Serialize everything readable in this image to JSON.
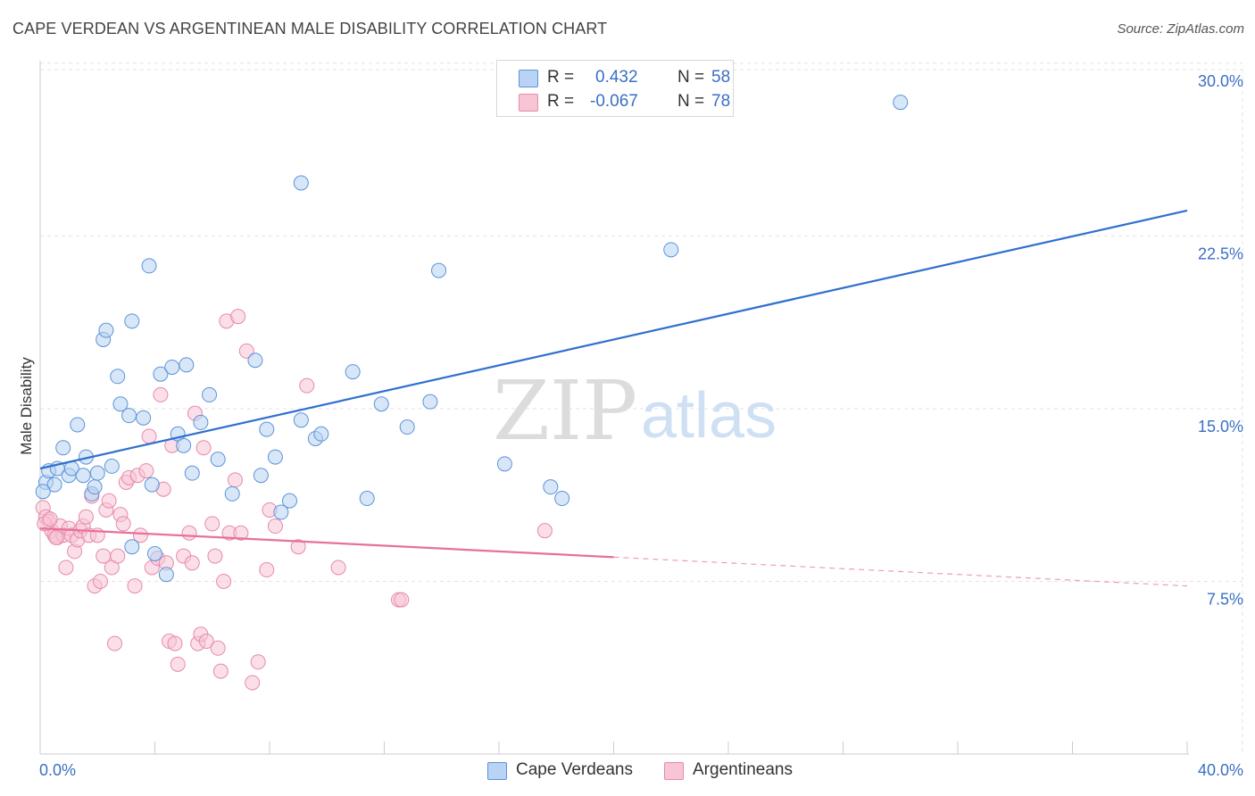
{
  "title": "CAPE VERDEAN VS ARGENTINEAN MALE DISABILITY CORRELATION CHART",
  "source": "Source: ZipAtlas.com",
  "watermark": {
    "part1": "ZIP",
    "part2": "atlas"
  },
  "legend": {
    "series1": {
      "r_label": "R =",
      "r_value": "0.432",
      "n_label": "N =",
      "n_value": "58"
    },
    "series2": {
      "r_label": "R =",
      "r_value": "-0.067",
      "n_label": "N =",
      "n_value": "78"
    }
  },
  "bottom_legend": {
    "series1": "Cape Verdeans",
    "series2": "Argentineans"
  },
  "colors": {
    "blue_fill": "#b8d3f3",
    "blue_stroke": "#5b93d8",
    "blue_line": "#2f6fcf",
    "pink_fill": "#f8c5d5",
    "pink_stroke": "#e68aa8",
    "pink_line": "#e8709a",
    "axis_text": "#3a6fc4",
    "grid": "#e3e3e3"
  },
  "chart_data": {
    "type": "scatter",
    "title": "CAPE VERDEAN VS ARGENTINEAN MALE DISABILITY CORRELATION CHART",
    "xlabel": "",
    "ylabel": "Male Disability",
    "xlim": [
      0,
      40
    ],
    "ylim": [
      0,
      31
    ],
    "x_tick_labels": [
      "0.0%",
      "40.0%"
    ],
    "y_ticks": [
      7.5,
      15.0,
      22.5,
      30.0
    ],
    "y_tick_labels": [
      "7.5%",
      "15.0%",
      "22.5%",
      "30.0%"
    ],
    "series": [
      {
        "name": "Cape Verdeans",
        "color": "#5b93d8",
        "trend": {
          "x": [
            0,
            40
          ],
          "y": [
            12.4,
            23.6
          ],
          "style": "solid"
        },
        "points": [
          [
            0.2,
            11.8
          ],
          [
            0.3,
            12.3
          ],
          [
            0.5,
            11.7
          ],
          [
            0.6,
            12.4
          ],
          [
            0.8,
            13.3
          ],
          [
            1.0,
            12.1
          ],
          [
            1.1,
            12.4
          ],
          [
            1.3,
            14.3
          ],
          [
            1.5,
            12.1
          ],
          [
            1.6,
            12.9
          ],
          [
            1.8,
            11.3
          ],
          [
            1.9,
            11.6
          ],
          [
            2.0,
            12.2
          ],
          [
            2.2,
            18.0
          ],
          [
            2.3,
            18.4
          ],
          [
            2.5,
            12.5
          ],
          [
            2.7,
            16.4
          ],
          [
            2.8,
            15.2
          ],
          [
            3.1,
            14.7
          ],
          [
            3.2,
            18.8
          ],
          [
            3.2,
            9.0
          ],
          [
            3.6,
            14.6
          ],
          [
            3.8,
            21.2
          ],
          [
            3.9,
            11.7
          ],
          [
            4.0,
            8.7
          ],
          [
            4.2,
            16.5
          ],
          [
            4.4,
            7.8
          ],
          [
            4.6,
            16.8
          ],
          [
            4.8,
            13.9
          ],
          [
            5.0,
            13.4
          ],
          [
            5.1,
            16.9
          ],
          [
            5.3,
            12.2
          ],
          [
            5.6,
            14.4
          ],
          [
            5.9,
            15.6
          ],
          [
            6.2,
            12.8
          ],
          [
            6.7,
            11.3
          ],
          [
            7.5,
            17.1
          ],
          [
            7.7,
            12.1
          ],
          [
            7.9,
            14.1
          ],
          [
            8.2,
            12.9
          ],
          [
            8.4,
            10.5
          ],
          [
            8.7,
            11.0
          ],
          [
            9.1,
            14.5
          ],
          [
            9.1,
            24.8
          ],
          [
            9.6,
            13.7
          ],
          [
            9.8,
            13.9
          ],
          [
            10.9,
            16.6
          ],
          [
            11.4,
            11.1
          ],
          [
            11.9,
            15.2
          ],
          [
            12.8,
            14.2
          ],
          [
            13.6,
            15.3
          ],
          [
            13.9,
            21.0
          ],
          [
            16.2,
            12.6
          ],
          [
            17.8,
            11.6
          ],
          [
            18.2,
            11.1
          ],
          [
            22.0,
            21.9
          ],
          [
            30.0,
            28.3
          ],
          [
            0.1,
            11.4
          ]
        ]
      },
      {
        "name": "Argentineans",
        "color": "#e68aa8",
        "trend": {
          "x": [
            0,
            20
          ],
          "y": [
            9.8,
            8.55
          ],
          "style": "solid",
          "dashed_to": [
            40,
            7.3
          ]
        },
        "points": [
          [
            0.1,
            10.7
          ],
          [
            0.2,
            10.3
          ],
          [
            0.3,
            10.1
          ],
          [
            0.4,
            9.7
          ],
          [
            0.5,
            9.5
          ],
          [
            0.6,
            9.4
          ],
          [
            0.7,
            9.9
          ],
          [
            0.8,
            9.5
          ],
          [
            0.9,
            8.1
          ],
          [
            1.0,
            9.8
          ],
          [
            1.1,
            9.5
          ],
          [
            1.2,
            8.8
          ],
          [
            1.3,
            9.3
          ],
          [
            1.4,
            9.7
          ],
          [
            1.5,
            9.9
          ],
          [
            1.6,
            10.3
          ],
          [
            1.7,
            9.5
          ],
          [
            1.8,
            11.2
          ],
          [
            1.9,
            7.3
          ],
          [
            2.0,
            9.5
          ],
          [
            2.1,
            7.5
          ],
          [
            2.2,
            8.6
          ],
          [
            2.3,
            10.6
          ],
          [
            2.4,
            11.0
          ],
          [
            2.5,
            8.1
          ],
          [
            2.6,
            4.8
          ],
          [
            2.7,
            8.6
          ],
          [
            2.8,
            10.4
          ],
          [
            2.9,
            10.0
          ],
          [
            3.0,
            11.8
          ],
          [
            3.1,
            12.0
          ],
          [
            3.3,
            7.3
          ],
          [
            3.4,
            12.1
          ],
          [
            3.5,
            9.5
          ],
          [
            3.7,
            12.3
          ],
          [
            3.8,
            13.8
          ],
          [
            3.9,
            8.1
          ],
          [
            4.1,
            8.5
          ],
          [
            4.2,
            15.6
          ],
          [
            4.3,
            11.5
          ],
          [
            4.4,
            8.3
          ],
          [
            4.5,
            4.9
          ],
          [
            4.6,
            13.4
          ],
          [
            4.7,
            4.8
          ],
          [
            4.8,
            3.9
          ],
          [
            5.0,
            8.6
          ],
          [
            5.2,
            9.6
          ],
          [
            5.3,
            8.3
          ],
          [
            5.4,
            14.8
          ],
          [
            5.5,
            4.8
          ],
          [
            5.6,
            5.2
          ],
          [
            5.7,
            13.3
          ],
          [
            5.8,
            4.9
          ],
          [
            6.0,
            10.0
          ],
          [
            6.1,
            8.6
          ],
          [
            6.2,
            4.6
          ],
          [
            6.3,
            3.6
          ],
          [
            6.4,
            7.5
          ],
          [
            6.5,
            18.8
          ],
          [
            6.6,
            9.6
          ],
          [
            6.8,
            11.9
          ],
          [
            6.9,
            19.0
          ],
          [
            7.0,
            9.6
          ],
          [
            7.2,
            17.5
          ],
          [
            7.4,
            3.1
          ],
          [
            7.6,
            4.0
          ],
          [
            7.9,
            8.0
          ],
          [
            8.0,
            10.6
          ],
          [
            8.2,
            9.9
          ],
          [
            9.0,
            9.0
          ],
          [
            9.3,
            16.0
          ],
          [
            10.4,
            8.1
          ],
          [
            12.5,
            6.7
          ],
          [
            12.6,
            6.7
          ],
          [
            17.6,
            9.7
          ],
          [
            0.15,
            10.0
          ],
          [
            0.35,
            10.2
          ],
          [
            0.55,
            9.4
          ]
        ]
      }
    ]
  }
}
